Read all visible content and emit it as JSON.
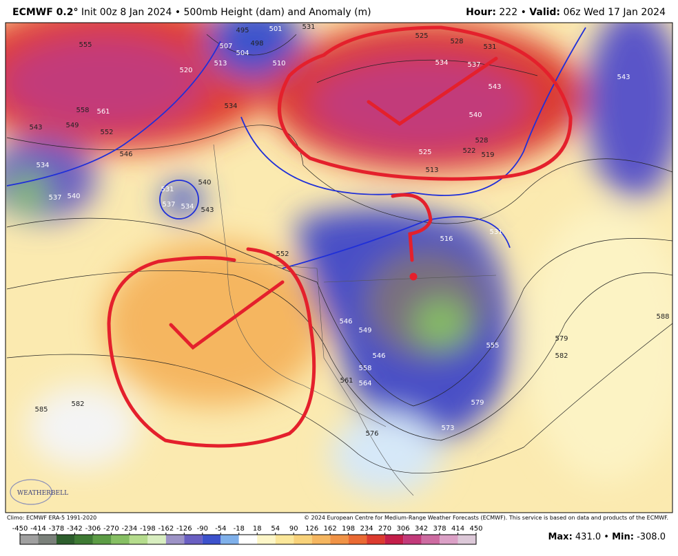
{
  "header": {
    "model": "ECMWF 0.2°",
    "description": "Init 00z 8 Jan 2024 • 500mb Height (dam) and Anomaly (m)",
    "hour_label": "Hour:",
    "hour_value": "222",
    "separator": "•",
    "valid_label": "Valid:",
    "valid_value": "06z Wed 17 Jan 2024"
  },
  "contour_labels": [
    "555",
    "561",
    "558",
    "549",
    "552",
    "543",
    "534",
    "537",
    "540",
    "546",
    "495",
    "498",
    "507",
    "504",
    "513",
    "510",
    "501",
    "520",
    "534",
    "531",
    "531",
    "528",
    "525",
    "534",
    "537",
    "543",
    "540",
    "528",
    "522",
    "519",
    "525",
    "513",
    "543",
    "516",
    "531",
    "537",
    "531",
    "534",
    "540",
    "543",
    "552",
    "546",
    "549",
    "546",
    "558",
    "561",
    "564",
    "576",
    "573",
    "579",
    "555",
    "579",
    "582",
    "588",
    "585",
    "582"
  ],
  "logo": "WEATHERBELL",
  "footer": {
    "climo": "Climo: ECMWF ERA-5 1991-2020",
    "copyright": "© 2024 European Centre for Medium-Range Weather Forecasts (ECMWF). This service is based on data and products of the ECMWF."
  },
  "colorbar": {
    "ticks": [
      -450,
      -414,
      -378,
      -342,
      -306,
      -270,
      -234,
      -198,
      -162,
      -126,
      -90,
      -54,
      -18,
      18,
      54,
      90,
      126,
      162,
      198,
      234,
      270,
      306,
      342,
      378,
      414,
      450
    ],
    "colors": [
      "#a0a0a0",
      "#7a807a",
      "#2d5e2d",
      "#3e7a34",
      "#5c9c45",
      "#86bf63",
      "#b5dc8d",
      "#d8eec0",
      "#9d93c6",
      "#6a5fc2",
      "#3d52cc",
      "#7fb0ea",
      "#ffffff",
      "#fdf6c8",
      "#fbe79a",
      "#f8d27a",
      "#f5b660",
      "#f09346",
      "#ea6a33",
      "#dc3b2f",
      "#c41e4a",
      "#c23a7a",
      "#cd6ba1",
      "#dba0c6",
      "#dcc8d8"
    ]
  },
  "stats": {
    "max_label": "Max:",
    "max_value": "431.0",
    "separator": "•",
    "min_label": "Min:",
    "min_value": "-308.0"
  }
}
